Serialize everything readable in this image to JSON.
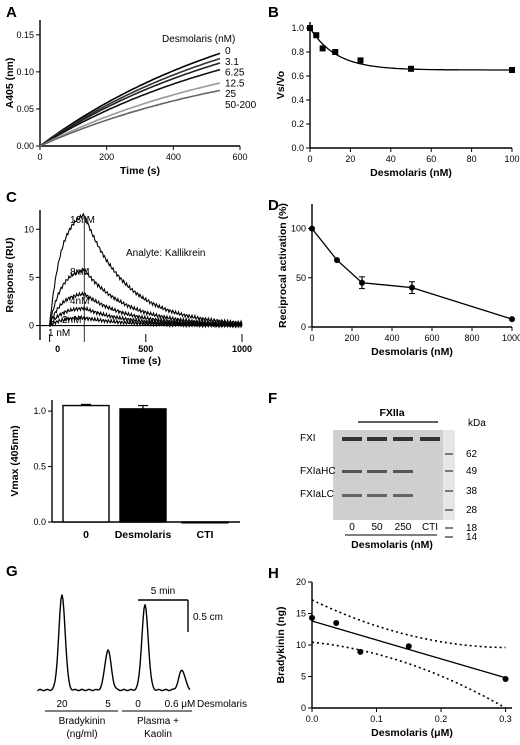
{
  "panels": {
    "A": {
      "label": "A"
    },
    "B": {
      "label": "B"
    },
    "C": {
      "label": "C"
    },
    "D": {
      "label": "D"
    },
    "E": {
      "label": "E"
    },
    "F": {
      "label": "F"
    },
    "G": {
      "label": "G"
    },
    "H": {
      "label": "H"
    }
  },
  "chart_data": [
    {
      "panel": "A",
      "type": "line",
      "xlabel": "Time (s)",
      "ylabel": "A405 (nm)",
      "xlim": [
        0,
        600
      ],
      "ylim": [
        0,
        0.17
      ],
      "xticks": [
        "0",
        "200",
        "400",
        "600"
      ],
      "yticks": [
        "0.00",
        "0.05",
        "0.10",
        "0.15"
      ],
      "legend_title": "Desmolaris (nM)",
      "series": [
        {
          "name": "0",
          "color": "#000000",
          "final": 0.125
        },
        {
          "name": "3.1",
          "color": "#333333",
          "final": 0.118
        },
        {
          "name": "6.25",
          "color": "#222222",
          "final": 0.112
        },
        {
          "name": "12.5",
          "color": "#111111",
          "final": 0.103
        },
        {
          "name": "25",
          "color": "#999999",
          "final": 0.085
        },
        {
          "name": "50-200",
          "color": "#666666",
          "final": 0.075
        }
      ],
      "x_end": 540
    },
    {
      "panel": "B",
      "type": "scatter",
      "xlabel": "Desmolaris (nM)",
      "ylabel": "Vs/Vo",
      "xlim": [
        0,
        100
      ],
      "ylim": [
        0,
        1.05
      ],
      "xticks": [
        "0",
        "20",
        "40",
        "60",
        "80",
        "100"
      ],
      "yticks": [
        "0.0",
        "0.2",
        "0.4",
        "0.6",
        "0.8",
        "1.0"
      ],
      "x": [
        0,
        3.1,
        6.25,
        12.5,
        25,
        50,
        100
      ],
      "y": [
        1.0,
        0.94,
        0.83,
        0.8,
        0.73,
        0.66,
        0.65
      ],
      "fit": "hyperbolic"
    },
    {
      "panel": "C",
      "type": "line",
      "xlabel": "Time (s)",
      "ylabel": "Response (RU)",
      "xlim": [
        -50,
        1000
      ],
      "ylim": [
        -1.5,
        12
      ],
      "xticks": [
        "0",
        "500",
        "1000"
      ],
      "yticks": [
        "0",
        "5",
        "10"
      ],
      "annotation": "Analyte: Kallikrein",
      "series": [
        {
          "name": "16nM",
          "peak": 11.5
        },
        {
          "name": "8nM",
          "peak": 5.8
        },
        {
          "name": "4nM",
          "peak": 3.3
        },
        {
          "name": "2nM",
          "peak": 1.8
        },
        {
          "name": "1 nM",
          "peak": 0.8
        }
      ],
      "injection_end": 180
    },
    {
      "panel": "D",
      "type": "line",
      "xlabel": "Desmolaris (nM)",
      "ylabel": "Reciprocal activation (%)",
      "xlim": [
        0,
        1000
      ],
      "ylim": [
        0,
        125
      ],
      "xticks": [
        "0",
        "200",
        "400",
        "600",
        "800",
        "1000"
      ],
      "yticks": [
        "0",
        "50",
        "100"
      ],
      "x": [
        0,
        125,
        250,
        500,
        1000
      ],
      "y": [
        100,
        68,
        45,
        40,
        8
      ],
      "err": [
        0,
        0,
        6,
        6,
        0
      ]
    },
    {
      "panel": "E",
      "type": "bar",
      "ylabel": "Vmax (405nm)",
      "ylim": [
        0,
        1.1
      ],
      "yticks": [
        "0.0",
        "0.5",
        "1.0"
      ],
      "categories": [
        "0",
        "Desmolaris",
        "CTI"
      ],
      "values": [
        1.05,
        1.02,
        0.0
      ],
      "err": [
        0.01,
        0.03,
        0.0
      ],
      "fills": [
        "#ffffff",
        "#000000",
        "#000000"
      ]
    },
    {
      "panel": "G",
      "type": "line",
      "scalebar_time": "5 min",
      "scalebar_height": "0.5 cm",
      "peak_labels": [
        "20",
        "5",
        "0",
        "0.6 μM"
      ],
      "desmolaris_label": "Desmolaris",
      "group1": "Bradykinin\n(ng/ml)",
      "group1_line1": "Bradykinin",
      "group1_line2": "(ng/ml)",
      "group2_line1": "Plasma +",
      "group2_line2": "Kaolin"
    },
    {
      "panel": "H",
      "type": "scatter",
      "xlabel": "Desmolaris (μM)",
      "ylabel": "Bradykinin (ng)",
      "xlim": [
        0,
        0.31
      ],
      "ylim": [
        0,
        20
      ],
      "xticks": [
        "0.0",
        "0.1",
        "0.2",
        "0.3"
      ],
      "yticks": [
        "0",
        "5",
        "10",
        "15",
        "20"
      ],
      "x": [
        0.0,
        0.0375,
        0.075,
        0.15,
        0.3
      ],
      "y": [
        14.3,
        13.5,
        8.9,
        9.8,
        4.6
      ],
      "fit_line": [
        13.8,
        4.8
      ],
      "ci_upper": [
        16.8,
        9.5
      ],
      "ci_lower": [
        10.8,
        0.0
      ]
    }
  ],
  "gel": {
    "title": "FXIIa",
    "kda_label": "kDa",
    "markers": [
      "62",
      "49",
      "38",
      "28",
      "18",
      "14"
    ],
    "band_labels": [
      "FXI",
      "FXIaHC",
      "FXIaLC"
    ],
    "lanes": [
      "0",
      "50",
      "250",
      "CTI"
    ],
    "xlabel": "Desmolaris (nM)"
  }
}
